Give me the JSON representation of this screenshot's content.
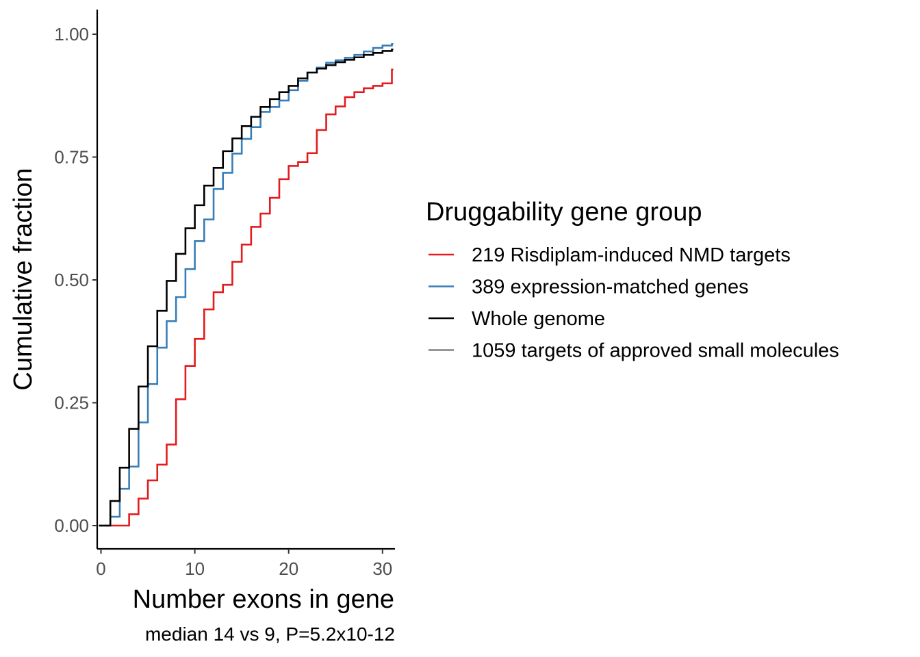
{
  "chart_data": {
    "type": "line",
    "step": true,
    "xlabel": "Number exons in gene",
    "ylabel": "Cumulative fraction",
    "caption": "median 14 vs 9, P=5.2x10-12",
    "xlim": [
      0,
      31
    ],
    "ylim": [
      0,
      1
    ],
    "x_ticks": [
      0,
      10,
      20,
      30
    ],
    "x_tick_labels": [
      "0",
      "10",
      "20",
      "30"
    ],
    "y_ticks": [
      0,
      0.25,
      0.5,
      0.75,
      1.0
    ],
    "y_tick_labels": [
      "0.00",
      "0.25",
      "0.50",
      "0.75",
      "1.00"
    ],
    "grid": false,
    "legend": {
      "title": "Druggability gene group",
      "placement": "right"
    },
    "series": [
      {
        "name": "219 Risdiplam-induced NMD targets",
        "color": "#e41a1c",
        "x": [
          0,
          1,
          2,
          3,
          4,
          5,
          6,
          7,
          8,
          9,
          10,
          11,
          12,
          13,
          14,
          15,
          16,
          17,
          18,
          19,
          20,
          21,
          22,
          23,
          24,
          25,
          26,
          27,
          28,
          29,
          30,
          31
        ],
        "values": [
          0,
          0,
          0,
          0.023,
          0.055,
          0.092,
          0.124,
          0.165,
          0.257,
          0.325,
          0.38,
          0.44,
          0.475,
          0.49,
          0.537,
          0.572,
          0.608,
          0.635,
          0.667,
          0.705,
          0.732,
          0.74,
          0.758,
          0.805,
          0.837,
          0.853,
          0.872,
          0.882,
          0.89,
          0.895,
          0.9,
          0.928
        ]
      },
      {
        "name": "389 expression-matched genes",
        "color": "#377eb8",
        "x": [
          0,
          1,
          2,
          3,
          4,
          5,
          6,
          7,
          8,
          9,
          10,
          11,
          12,
          13,
          14,
          15,
          16,
          17,
          18,
          19,
          20,
          21,
          22,
          23,
          24,
          25,
          26,
          27,
          28,
          29,
          30,
          31
        ],
        "values": [
          0,
          0.018,
          0.075,
          0.12,
          0.21,
          0.288,
          0.362,
          0.416,
          0.465,
          0.522,
          0.579,
          0.623,
          0.685,
          0.718,
          0.757,
          0.787,
          0.811,
          0.842,
          0.852,
          0.865,
          0.886,
          0.905,
          0.922,
          0.932,
          0.942,
          0.947,
          0.952,
          0.958,
          0.965,
          0.972,
          0.977,
          0.98
        ]
      },
      {
        "name": "Whole genome",
        "color": "#000000",
        "x": [
          0,
          1,
          2,
          3,
          4,
          5,
          6,
          7,
          8,
          9,
          10,
          11,
          12,
          13,
          14,
          15,
          16,
          17,
          18,
          19,
          20,
          21,
          22,
          23,
          24,
          25,
          26,
          27,
          28,
          29,
          30,
          31
        ],
        "values": [
          0,
          0.05,
          0.118,
          0.197,
          0.283,
          0.365,
          0.437,
          0.498,
          0.553,
          0.605,
          0.652,
          0.692,
          0.728,
          0.762,
          0.788,
          0.813,
          0.832,
          0.852,
          0.868,
          0.882,
          0.895,
          0.91,
          0.922,
          0.93,
          0.937,
          0.943,
          0.948,
          0.953,
          0.958,
          0.962,
          0.966,
          0.969
        ]
      },
      {
        "name": "1059 targets of approved small molecules",
        "color": "#808080",
        "x": [],
        "values": []
      }
    ]
  }
}
